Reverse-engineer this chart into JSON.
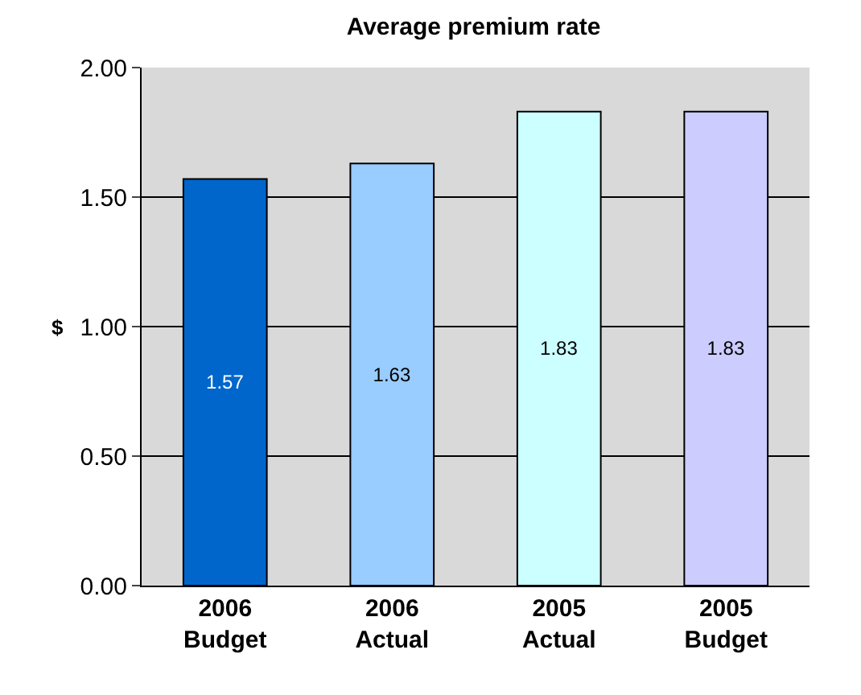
{
  "chart_data": {
    "type": "bar",
    "title": "Average premium rate",
    "ylabel": "$",
    "categories": [
      "2006 Budget",
      "2006 Actual",
      "2005 Actual",
      "2005 Budget"
    ],
    "values": [
      1.57,
      1.63,
      1.83,
      1.83
    ],
    "colors": [
      "#0066cc",
      "#99ccff",
      "#ccffff",
      "#ccccff"
    ],
    "ylim": [
      0,
      2
    ],
    "yticks": [
      {
        "value": 0,
        "label": "0.00"
      },
      {
        "value": 0.5,
        "label": "0.50"
      },
      {
        "value": 1,
        "label": "1.00"
      },
      {
        "value": 1.5,
        "label": "1.50"
      },
      {
        "value": 2,
        "label": "2.00"
      }
    ],
    "grid": "y",
    "data_labels": true
  }
}
